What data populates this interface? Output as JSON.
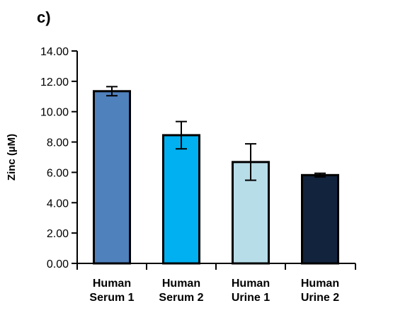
{
  "panel_label": "c)",
  "chart_data": {
    "type": "bar",
    "categories": [
      [
        "Human",
        "Serum 1"
      ],
      [
        "Human",
        "Serum 2"
      ],
      [
        "Human",
        "Urine 1"
      ],
      [
        "Human",
        "Urine 2"
      ]
    ],
    "values": [
      11.35,
      8.45,
      6.68,
      5.82
    ],
    "errors": [
      0.3,
      0.9,
      1.2,
      0.12
    ],
    "colors": [
      "#4f81bd",
      "#00b0f0",
      "#b7dde8",
      "#12233d"
    ],
    "bar_outline": "#000000",
    "ylabel": "Zinc (µM)",
    "xlabel": "",
    "ylim": [
      0,
      14
    ],
    "yticks": [
      "0.00",
      "2.00",
      "4.00",
      "6.00",
      "8.00",
      "10.00",
      "12.00",
      "14.00"
    ],
    "ytick_values": [
      0,
      2,
      4,
      6,
      8,
      10,
      12,
      14
    ],
    "grid": false,
    "legend": "none"
  }
}
